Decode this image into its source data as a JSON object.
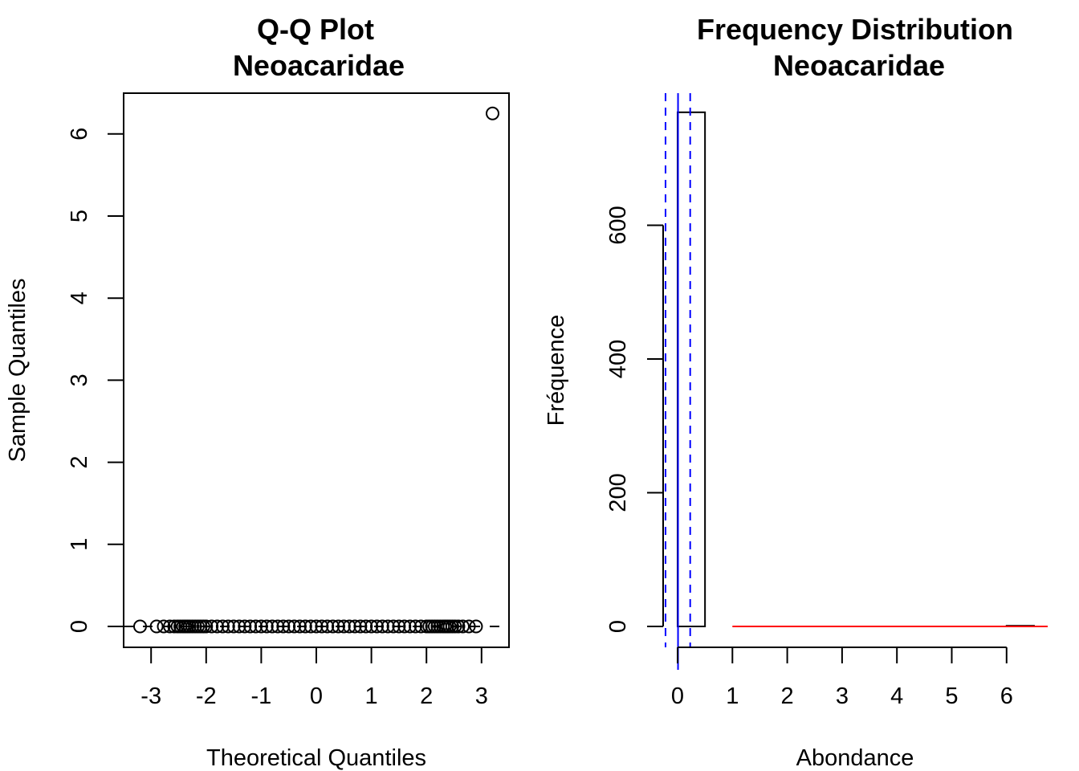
{
  "chart_data": [
    {
      "type": "scatter",
      "title": "Q-Q Plot",
      "subtitle": "Neoacaridae",
      "xlabel": "Theoretical Quantiles",
      "ylabel": "Sample Quantiles",
      "xlim": [
        -3.5,
        3.5
      ],
      "ylim": [
        -0.25,
        6.5
      ],
      "x_ticks": [
        "-3",
        "-2",
        "-1",
        "0",
        "1",
        "2",
        "3"
      ],
      "y_ticks": [
        "0",
        "1",
        "2",
        "3",
        "4",
        "5",
        "6"
      ],
      "grid": false,
      "points": {
        "x": [
          -3.2,
          -2.9,
          -2.77,
          -2.66,
          -2.58,
          -2.52,
          -2.47,
          -2.42,
          -2.38,
          -2.34,
          -2.3,
          -2.25,
          -2.2,
          -2.15,
          -2.1,
          -2.05,
          -2.0,
          -1.9,
          -1.8,
          -1.7,
          -1.6,
          -1.5,
          -1.4,
          -1.3,
          -1.2,
          -1.1,
          -1.0,
          -0.9,
          -0.8,
          -0.7,
          -0.6,
          -0.5,
          -0.4,
          -0.3,
          -0.2,
          -0.1,
          0.0,
          0.1,
          0.2,
          0.3,
          0.4,
          0.5,
          0.6,
          0.7,
          0.8,
          0.9,
          1.0,
          1.1,
          1.2,
          1.3,
          1.4,
          1.5,
          1.6,
          1.7,
          1.8,
          1.9,
          2.0,
          2.05,
          2.1,
          2.15,
          2.2,
          2.25,
          2.3,
          2.34,
          2.38,
          2.42,
          2.47,
          2.52,
          2.58,
          2.66,
          2.77,
          2.9,
          3.2
        ],
        "y": [
          0,
          0,
          0,
          0,
          0,
          0,
          0,
          0,
          0,
          0,
          0,
          0,
          0,
          0,
          0,
          0,
          0,
          0,
          0,
          0,
          0,
          0,
          0,
          0,
          0,
          0,
          0,
          0,
          0,
          0,
          0,
          0,
          0,
          0,
          0,
          0,
          0,
          0,
          0,
          0,
          0,
          0,
          0,
          0,
          0,
          0,
          0,
          0,
          0,
          0,
          0,
          0,
          0,
          0,
          0,
          0,
          0,
          0,
          0,
          0,
          0,
          0,
          0,
          0,
          0,
          0,
          0,
          0,
          0,
          0,
          0,
          0,
          6.25
        ]
      },
      "reference_line": {
        "color": "#000000",
        "dashed": true,
        "intercept": 0,
        "slope": 0
      }
    },
    {
      "type": "bar",
      "title": "Frequency Distribution",
      "subtitle": "Neoacaridae",
      "xlabel": "Abondance",
      "ylabel": "Fréquence",
      "xlim": [
        -0.25,
        6.5
      ],
      "ylim": [
        0,
        770
      ],
      "x_ticks": [
        "0",
        "1",
        "2",
        "3",
        "4",
        "5",
        "6"
      ],
      "y_ticks": [
        "0",
        "200",
        "400",
        "600"
      ],
      "grid": false,
      "bins": [
        {
          "x0": 0.0,
          "x1": 0.5,
          "count": 769
        },
        {
          "x0": 0.5,
          "x1": 1.0,
          "count": 0
        },
        {
          "x0": 1.0,
          "x1": 1.5,
          "count": 0
        },
        {
          "x0": 1.5,
          "x1": 2.0,
          "count": 0
        },
        {
          "x0": 2.0,
          "x1": 2.5,
          "count": 0
        },
        {
          "x0": 2.5,
          "x1": 3.0,
          "count": 0
        },
        {
          "x0": 3.0,
          "x1": 3.5,
          "count": 0
        },
        {
          "x0": 3.5,
          "x1": 4.0,
          "count": 0
        },
        {
          "x0": 4.0,
          "x1": 4.5,
          "count": 0
        },
        {
          "x0": 4.5,
          "x1": 5.0,
          "count": 0
        },
        {
          "x0": 5.0,
          "x1": 5.5,
          "count": 0
        },
        {
          "x0": 5.5,
          "x1": 6.0,
          "count": 0
        },
        {
          "x0": 6.0,
          "x1": 6.5,
          "count": 1
        }
      ],
      "mean_line": {
        "x": 0.008,
        "color": "#0000ff"
      },
      "sd_lines": {
        "x": [
          -0.22,
          0.23
        ],
        "color": "#0000ff",
        "dashed": true
      },
      "density_curve": {
        "color": "#ff0000",
        "x": [
          1.0,
          2.0,
          3.0,
          4.0,
          5.0,
          6.0,
          6.75
        ],
        "y": [
          0,
          0,
          0,
          0,
          0,
          0,
          0
        ]
      }
    }
  ]
}
